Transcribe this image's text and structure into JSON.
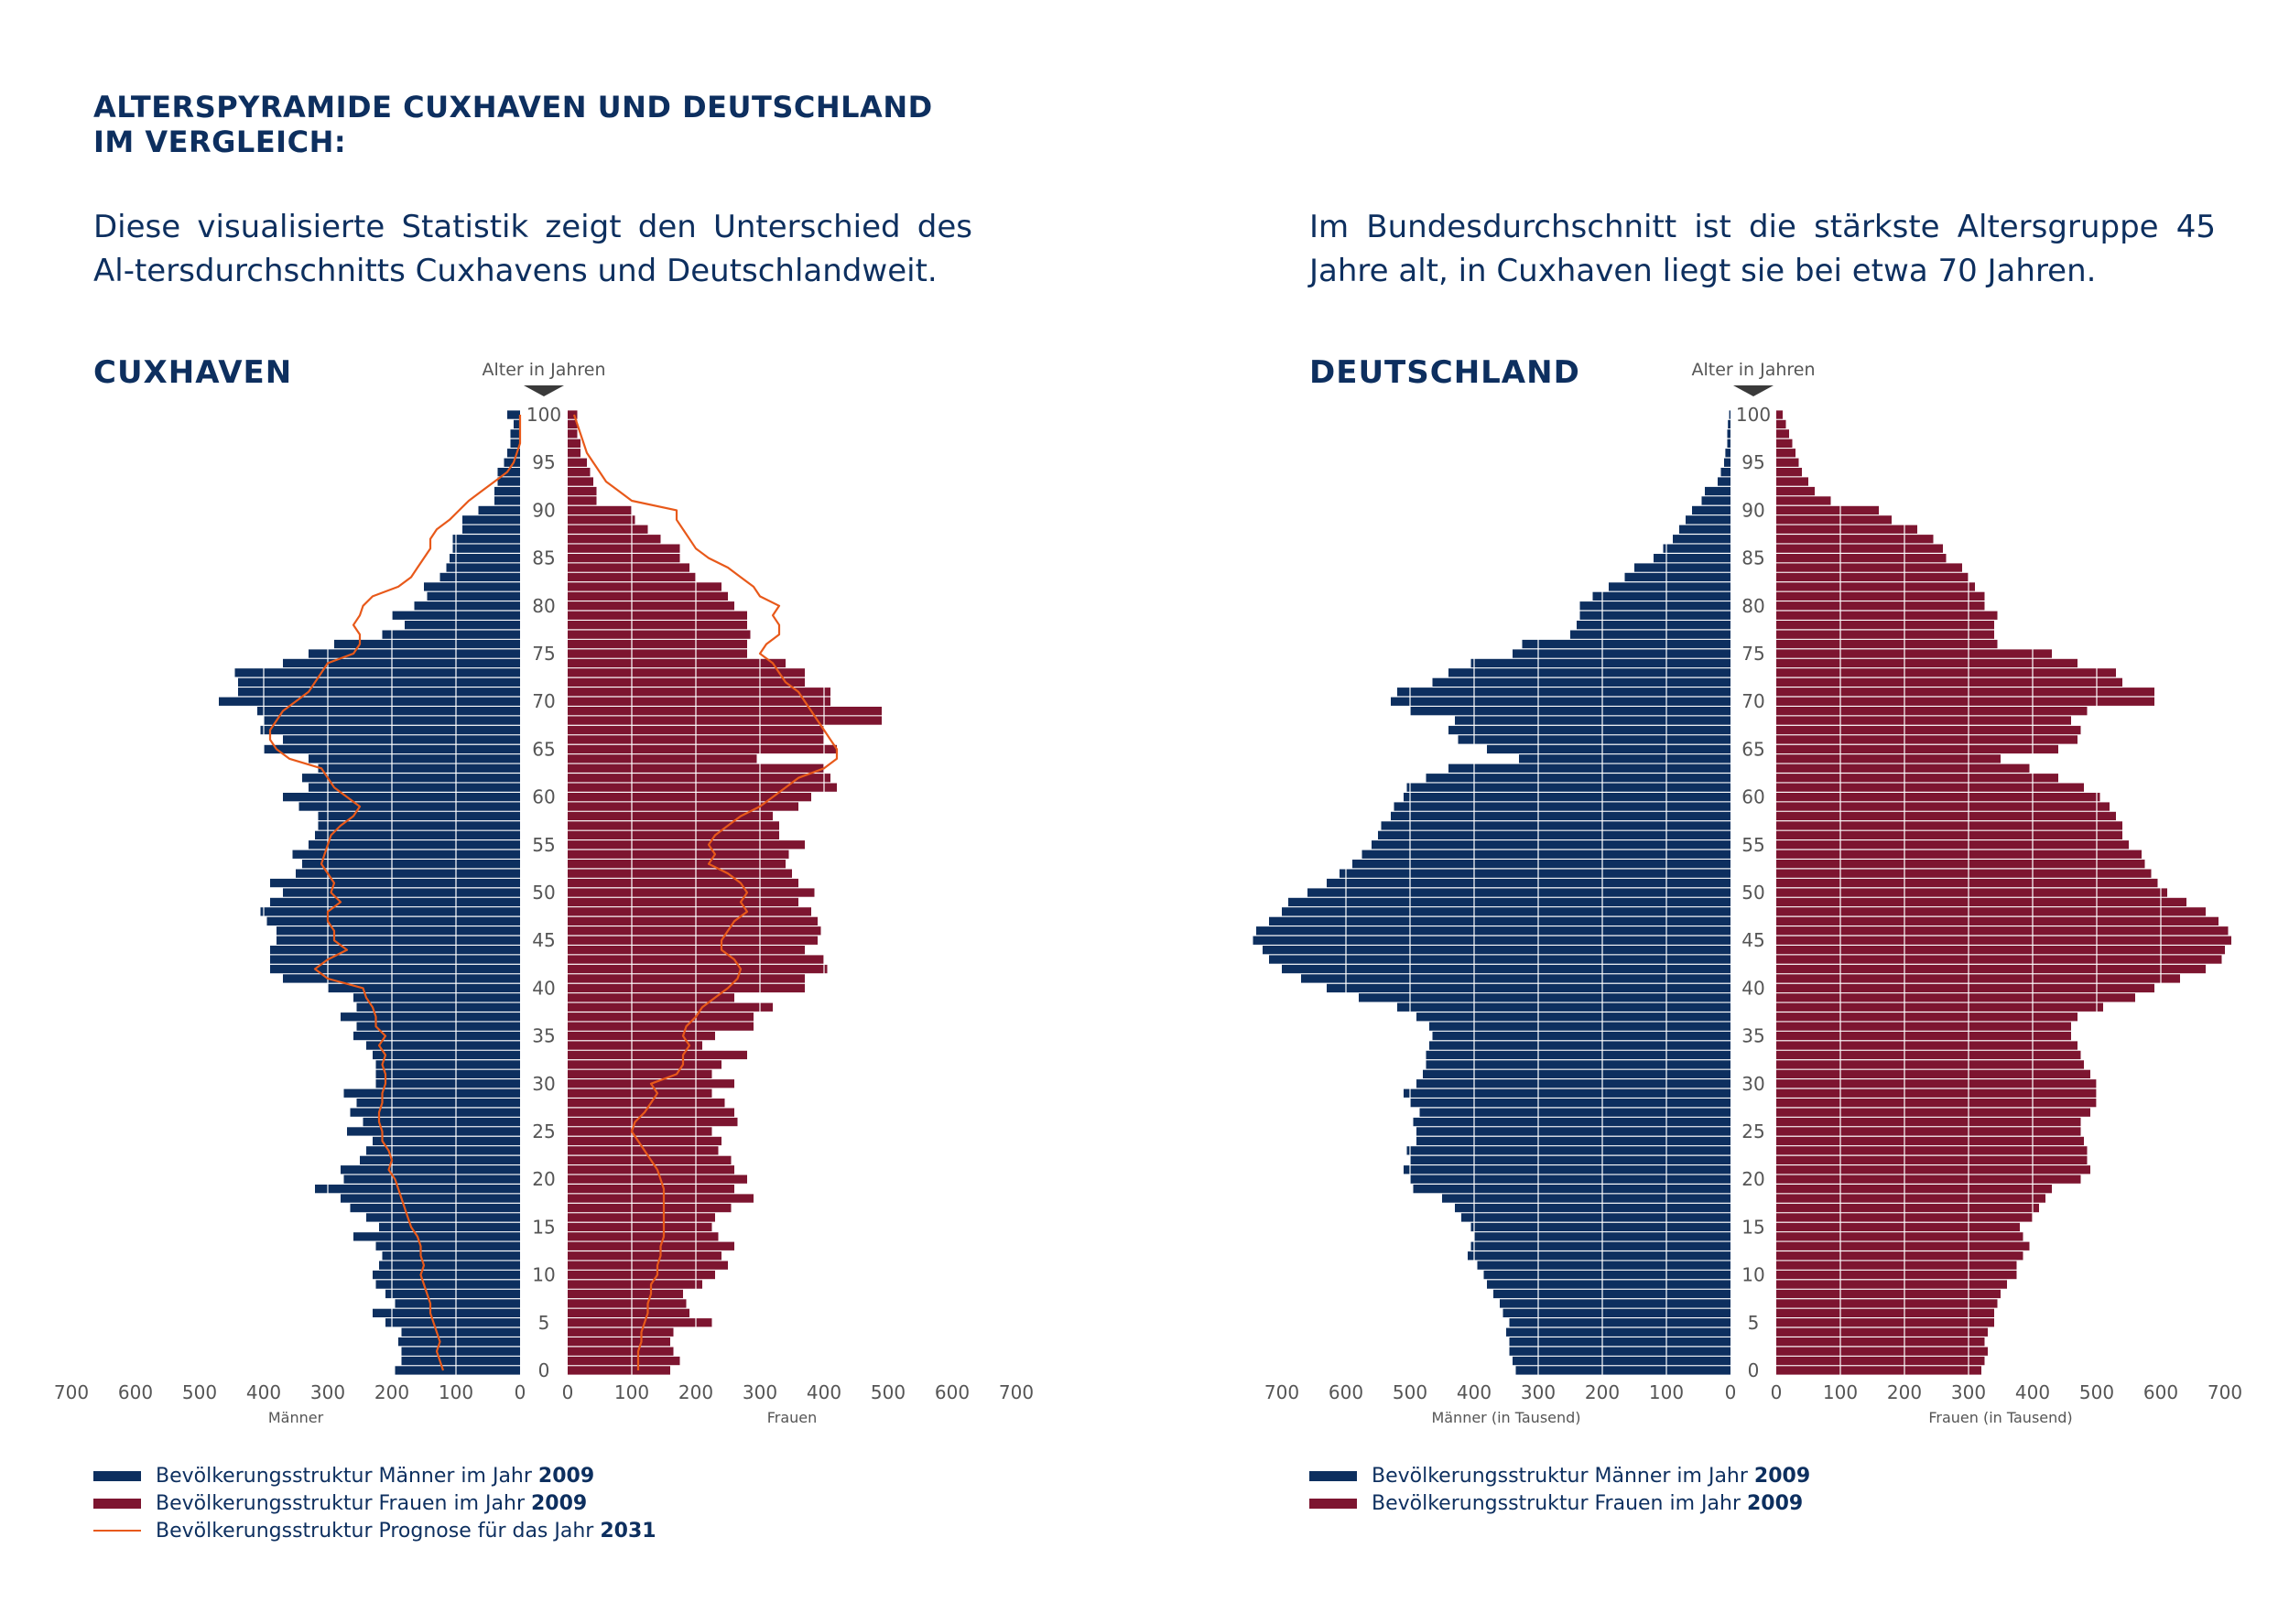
{
  "heading": "Alterspyramide Cuxhaven und Deutschland\nim Vergleich:",
  "intro_left": "Diese visualisierte Statistik zeigt den Unterschied des Al-tersdurchschnitts Cuxhavens und Deutschlandweit.",
  "intro_right": "Im Bundesdurchschnitt ist die stärkste Altersgruppe 45 Jahre alt, in Cuxhaven liegt sie bei etwa 70 Jahren.",
  "colors": {
    "men": "#0d2f5f",
    "women": "#7d1530",
    "prognosis": "#e8591a",
    "text": "#0d2f5f",
    "axis": "#555555"
  },
  "legend_left": [
    {
      "swatch": "men",
      "text": "Bevölkerungsstruktur Männer im Jahr ",
      "year": "2009"
    },
    {
      "swatch": "women",
      "text": "Bevölkerungsstruktur Frauen im Jahr ",
      "year": "2009"
    },
    {
      "swatch": "prognosis",
      "text": "Bevölkerungsstruktur Prognose für das Jahr ",
      "year": "2031"
    }
  ],
  "legend_right": [
    {
      "swatch": "men",
      "text": "Bevölkerungsstruktur Männer im Jahr ",
      "year": "2009"
    },
    {
      "swatch": "women",
      "text": "Bevölkerungsstruktur Frauen im Jahr ",
      "year": "2009"
    }
  ],
  "chart_data": [
    {
      "type": "bar",
      "title": "CUXHAVEN",
      "age_axis_label": "Alter in Jahren",
      "xlabel_left": "Männer",
      "xlabel_right": "Frauen",
      "xlim": [
        0,
        700
      ],
      "x_ticks": [
        0,
        100,
        200,
        300,
        400,
        500,
        600,
        700
      ],
      "age_ticks": [
        0,
        5,
        10,
        15,
        20,
        25,
        30,
        35,
        40,
        45,
        50,
        55,
        60,
        65,
        70,
        75,
        80,
        85,
        90,
        95,
        100
      ],
      "grid": true,
      "ages": [
        0,
        1,
        2,
        3,
        4,
        5,
        6,
        7,
        8,
        9,
        10,
        11,
        12,
        13,
        14,
        15,
        16,
        17,
        18,
        19,
        20,
        21,
        22,
        23,
        24,
        25,
        26,
        27,
        28,
        29,
        30,
        31,
        32,
        33,
        34,
        35,
        36,
        37,
        38,
        39,
        40,
        41,
        42,
        43,
        44,
        45,
        46,
        47,
        48,
        49,
        50,
        51,
        52,
        53,
        54,
        55,
        56,
        57,
        58,
        59,
        60,
        61,
        62,
        63,
        64,
        65,
        66,
        67,
        68,
        69,
        70,
        71,
        72,
        73,
        74,
        75,
        76,
        77,
        78,
        79,
        80,
        81,
        82,
        83,
        84,
        85,
        86,
        87,
        88,
        89,
        90,
        91,
        92,
        93,
        94,
        95,
        96,
        97,
        98,
        99,
        100
      ],
      "series": [
        {
          "name": "Bevölkerungsstruktur Männer im Jahr 2009",
          "role": "men",
          "values": [
            195,
            185,
            185,
            190,
            185,
            210,
            230,
            195,
            210,
            225,
            230,
            220,
            215,
            225,
            260,
            220,
            240,
            265,
            280,
            320,
            275,
            280,
            250,
            240,
            230,
            270,
            245,
            265,
            255,
            275,
            225,
            225,
            225,
            230,
            240,
            260,
            255,
            280,
            255,
            260,
            300,
            370,
            390,
            390,
            390,
            380,
            380,
            395,
            405,
            390,
            370,
            390,
            350,
            340,
            355,
            330,
            320,
            315,
            315,
            345,
            370,
            330,
            340,
            315,
            330,
            400,
            370,
            405,
            400,
            410,
            470,
            440,
            440,
            445,
            370,
            330,
            290,
            215,
            180,
            200,
            165,
            145,
            150,
            125,
            115,
            110,
            105,
            105,
            90,
            90,
            65,
            40,
            40,
            35,
            35,
            25,
            20,
            15,
            15,
            10,
            20
          ]
        },
        {
          "name": "Bevölkerungsstruktur Frauen im Jahr 2009",
          "role": "women",
          "values": [
            160,
            175,
            165,
            160,
            165,
            225,
            190,
            185,
            180,
            210,
            230,
            250,
            240,
            260,
            235,
            225,
            230,
            255,
            290,
            260,
            280,
            260,
            255,
            235,
            240,
            225,
            265,
            260,
            245,
            225,
            260,
            225,
            240,
            280,
            210,
            230,
            290,
            290,
            320,
            260,
            370,
            370,
            405,
            400,
            370,
            390,
            395,
            390,
            380,
            360,
            385,
            360,
            350,
            340,
            345,
            370,
            330,
            330,
            320,
            360,
            380,
            420,
            410,
            400,
            295,
            420,
            400,
            400,
            490,
            490,
            410,
            410,
            370,
            370,
            340,
            280,
            280,
            285,
            280,
            280,
            260,
            250,
            240,
            200,
            190,
            175,
            175,
            145,
            125,
            105,
            100,
            45,
            45,
            40,
            35,
            30,
            20,
            20,
            15,
            15,
            15
          ]
        },
        {
          "name": "Bevölkerungsstruktur Prognose für das Jahr 2031",
          "role": "prognosis-men",
          "values": [
            120,
            125,
            130,
            125,
            130,
            135,
            140,
            140,
            145,
            150,
            155,
            150,
            155,
            155,
            160,
            170,
            175,
            180,
            185,
            190,
            195,
            205,
            200,
            205,
            215,
            215,
            220,
            220,
            215,
            215,
            210,
            210,
            215,
            210,
            220,
            210,
            225,
            225,
            230,
            240,
            245,
            300,
            320,
            300,
            270,
            290,
            290,
            300,
            300,
            280,
            295,
            290,
            300,
            310,
            305,
            300,
            295,
            280,
            260,
            250,
            270,
            290,
            300,
            310,
            360,
            380,
            390,
            390,
            380,
            370,
            350,
            330,
            320,
            310,
            300,
            260,
            250,
            250,
            260,
            250,
            245,
            230,
            190,
            170,
            160,
            150,
            140,
            140,
            130,
            110,
            95,
            80,
            60,
            40,
            20,
            10,
            5,
            0,
            0,
            0,
            0
          ]
        },
        {
          "name": "Bevölkerungsstruktur Prognose für das Jahr 2031",
          "role": "prognosis-women",
          "values": [
            110,
            110,
            110,
            115,
            115,
            120,
            125,
            125,
            130,
            130,
            140,
            140,
            145,
            145,
            150,
            150,
            150,
            150,
            150,
            150,
            145,
            140,
            130,
            120,
            110,
            100,
            105,
            120,
            130,
            140,
            130,
            170,
            180,
            180,
            190,
            180,
            185,
            200,
            210,
            230,
            250,
            265,
            270,
            260,
            240,
            240,
            250,
            260,
            280,
            270,
            280,
            270,
            250,
            220,
            230,
            220,
            230,
            250,
            270,
            300,
            320,
            340,
            360,
            400,
            420,
            420,
            410,
            400,
            390,
            380,
            370,
            360,
            340,
            330,
            320,
            300,
            310,
            330,
            330,
            320,
            330,
            300,
            290,
            270,
            250,
            220,
            200,
            190,
            180,
            170,
            170,
            100,
            80,
            60,
            50,
            40,
            30,
            25,
            20,
            15,
            10
          ]
        }
      ]
    },
    {
      "type": "bar",
      "title": "DEUTSCHLAND",
      "age_axis_label": "Alter in Jahren",
      "xlabel_left": "Männer (in Tausend)",
      "xlabel_right": "Frauen (in Tausend)",
      "xlim": [
        0,
        700
      ],
      "x_ticks": [
        0,
        100,
        200,
        300,
        400,
        500,
        600,
        700
      ],
      "age_ticks": [
        0,
        5,
        10,
        15,
        20,
        25,
        30,
        35,
        40,
        45,
        50,
        55,
        60,
        65,
        70,
        75,
        80,
        85,
        90,
        95,
        100
      ],
      "grid": true,
      "ages": [
        0,
        1,
        2,
        3,
        4,
        5,
        6,
        7,
        8,
        9,
        10,
        11,
        12,
        13,
        14,
        15,
        16,
        17,
        18,
        19,
        20,
        21,
        22,
        23,
        24,
        25,
        26,
        27,
        28,
        29,
        30,
        31,
        32,
        33,
        34,
        35,
        36,
        37,
        38,
        39,
        40,
        41,
        42,
        43,
        44,
        45,
        46,
        47,
        48,
        49,
        50,
        51,
        52,
        53,
        54,
        55,
        56,
        57,
        58,
        59,
        60,
        61,
        62,
        63,
        64,
        65,
        66,
        67,
        68,
        69,
        70,
        71,
        72,
        73,
        74,
        75,
        76,
        77,
        78,
        79,
        80,
        81,
        82,
        83,
        84,
        85,
        86,
        87,
        88,
        89,
        90,
        91,
        92,
        93,
        94,
        95,
        96,
        97,
        98,
        99,
        100
      ],
      "series": [
        {
          "name": "Bevölkerungsstruktur Männer im Jahr 2009",
          "role": "men",
          "values": [
            335,
            340,
            345,
            345,
            350,
            345,
            355,
            360,
            370,
            380,
            385,
            395,
            410,
            405,
            400,
            405,
            420,
            430,
            450,
            495,
            500,
            510,
            500,
            505,
            490,
            490,
            495,
            485,
            500,
            510,
            490,
            480,
            475,
            475,
            470,
            465,
            470,
            490,
            520,
            580,
            630,
            670,
            700,
            720,
            730,
            745,
            740,
            720,
            700,
            690,
            660,
            630,
            610,
            590,
            575,
            560,
            550,
            545,
            530,
            525,
            510,
            505,
            475,
            440,
            330,
            380,
            425,
            440,
            430,
            500,
            530,
            520,
            465,
            440,
            405,
            340,
            325,
            250,
            240,
            235,
            235,
            215,
            190,
            165,
            150,
            120,
            105,
            90,
            80,
            70,
            60,
            45,
            40,
            20,
            15,
            10,
            8,
            5,
            5,
            4,
            2
          ]
        },
        {
          "name": "Bevölkerungsstruktur Frauen im Jahr 2009",
          "role": "women",
          "values": [
            320,
            325,
            330,
            325,
            330,
            340,
            340,
            345,
            350,
            360,
            375,
            375,
            385,
            395,
            385,
            380,
            400,
            410,
            420,
            430,
            475,
            490,
            485,
            485,
            480,
            475,
            475,
            490,
            500,
            500,
            500,
            490,
            480,
            475,
            470,
            460,
            460,
            470,
            510,
            560,
            590,
            630,
            670,
            695,
            700,
            710,
            705,
            690,
            670,
            640,
            610,
            595,
            585,
            575,
            570,
            550,
            540,
            540,
            530,
            520,
            505,
            480,
            440,
            395,
            350,
            440,
            470,
            475,
            460,
            485,
            590,
            590,
            540,
            530,
            470,
            430,
            345,
            340,
            340,
            345,
            325,
            325,
            310,
            300,
            290,
            265,
            260,
            245,
            220,
            180,
            160,
            85,
            60,
            50,
            40,
            35,
            30,
            25,
            20,
            15,
            10
          ]
        }
      ]
    }
  ]
}
